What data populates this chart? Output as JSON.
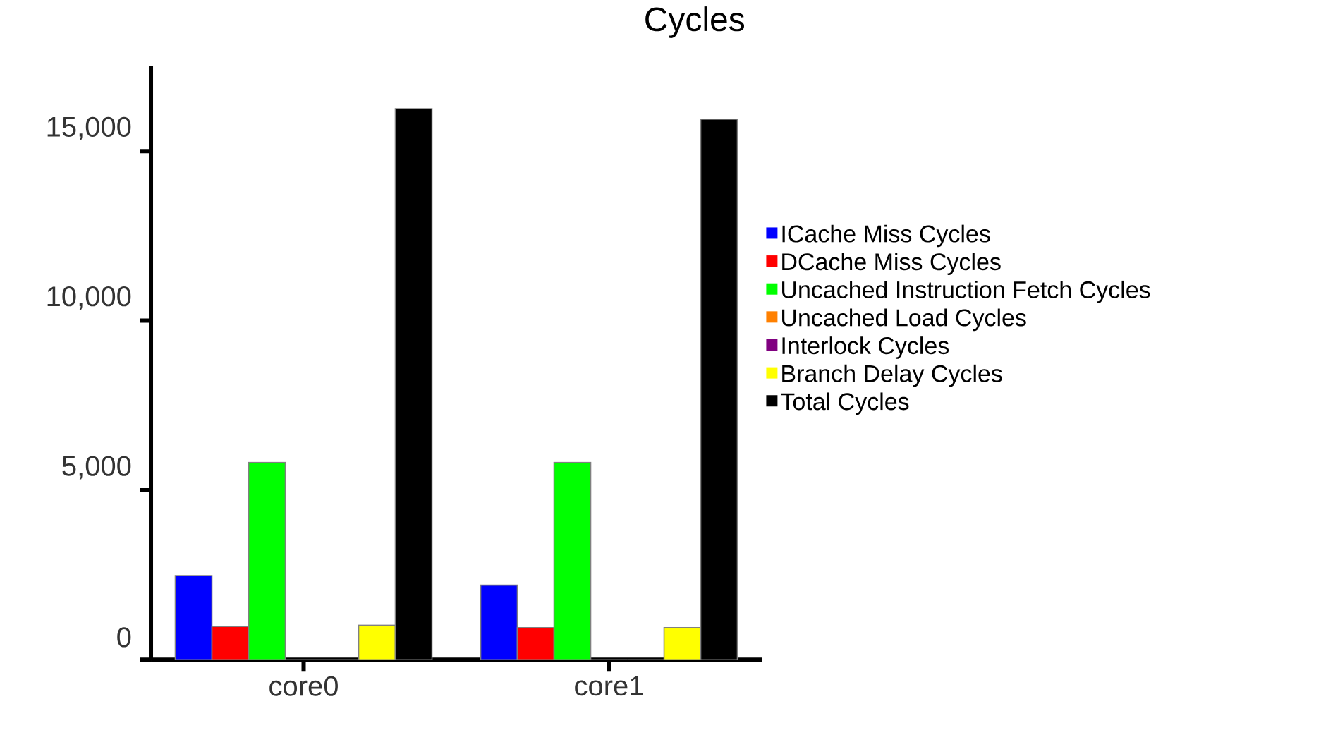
{
  "chart_data": {
    "type": "bar",
    "title": "Cycles",
    "categories": [
      "core0",
      "core1"
    ],
    "series": [
      {
        "name": "ICache Miss Cycles",
        "color": "#0000ff",
        "values": [
          2480,
          2200
        ]
      },
      {
        "name": "DCache Miss Cycles",
        "color": "#ff0000",
        "values": [
          980,
          950
        ]
      },
      {
        "name": "Uncached Instruction Fetch Cycles",
        "color": "#00ff00",
        "values": [
          5820,
          5820
        ]
      },
      {
        "name": "Uncached Load Cycles",
        "color": "#ff8000",
        "values": [
          0,
          0
        ]
      },
      {
        "name": "Interlock Cycles",
        "color": "#800080",
        "values": [
          0,
          0
        ]
      },
      {
        "name": "Branch Delay Cycles",
        "color": "#ffff00",
        "values": [
          1020,
          950
        ]
      },
      {
        "name": "Total Cycles",
        "color": "#000000",
        "values": [
          16250,
          15940
        ]
      }
    ],
    "ylim": [
      0,
      17500
    ],
    "yticks": [
      0,
      {
        "value": 5000,
        "label": "5,000"
      },
      {
        "value": 10000,
        "label": "10,000"
      },
      {
        "value": 15000,
        "label": "15,000"
      }
    ],
    "grid": false,
    "legend": "right"
  }
}
